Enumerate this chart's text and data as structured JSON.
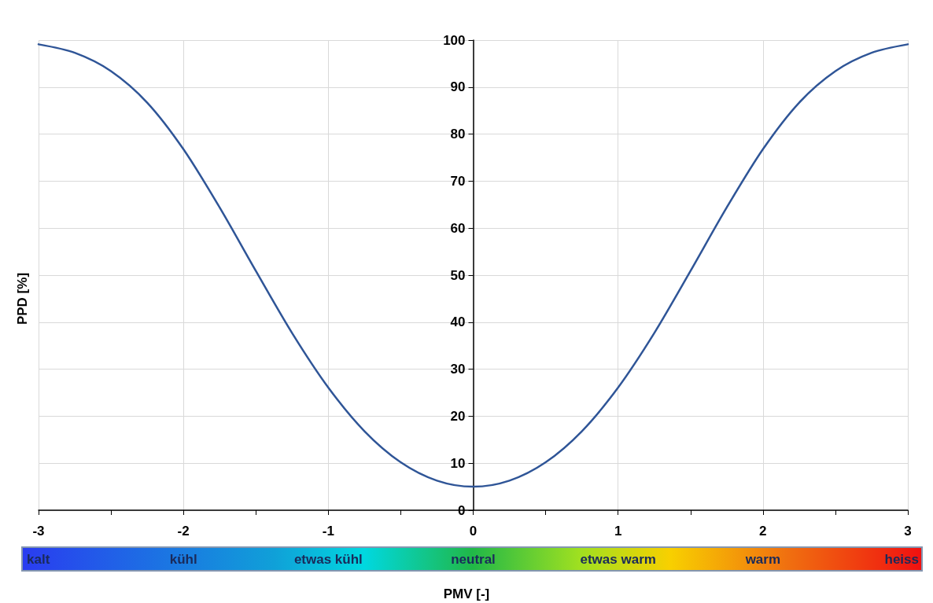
{
  "chart_data": {
    "type": "line",
    "xlabel": "PMV [-]",
    "ylabel": "PPD [%]",
    "x": [
      -3,
      -2.75,
      -2.5,
      -2.25,
      -2,
      -1.75,
      -1.5,
      -1.25,
      -1,
      -0.75,
      -0.5,
      -0.25,
      0,
      0.25,
      0.5,
      0.75,
      1,
      1.25,
      1.5,
      1.75,
      2,
      2.25,
      2.5,
      2.75,
      3
    ],
    "series": [
      {
        "color": "#2f5597",
        "values": [
          99.1,
          97.3,
          93.4,
          86.7,
          76.8,
          64.4,
          50.9,
          37.7,
          26.1,
          16.8,
          10.2,
          6.3,
          5,
          6.3,
          10.2,
          16.8,
          26.1,
          37.7,
          50.9,
          64.4,
          76.8,
          86.7,
          93.4,
          97.3,
          99.1
        ]
      }
    ],
    "xlim": [
      -3,
      3
    ],
    "xticks": [
      -3,
      -2,
      -1,
      0,
      1,
      2,
      3
    ],
    "ylim": [
      0,
      100
    ],
    "yticks": [
      0,
      10,
      20,
      30,
      40,
      50,
      60,
      70,
      80,
      90,
      100
    ],
    "grid": true,
    "marker": "none",
    "line_style": "solid",
    "annotations": [
      "kalt",
      "kühl",
      "etwas kühl",
      "neutral",
      "etwas warm",
      "warm",
      "heiss"
    ]
  }
}
